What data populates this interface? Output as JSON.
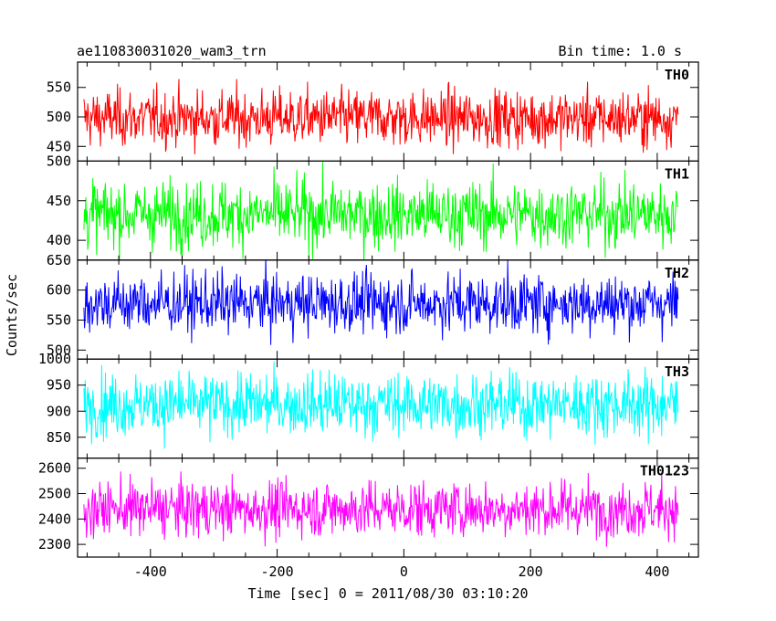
{
  "chart_data": {
    "type": "line",
    "title": "ae110830031020_wam3_trn",
    "subtitle": "Bin time: 1.0 s",
    "xlabel": "Time [sec] 0 = 2011/08/30 03:10:20",
    "ylabel": "Counts/sec",
    "xlim": [
      -515,
      465
    ],
    "x_ticks": [
      -400,
      -200,
      0,
      200,
      400
    ],
    "grid": false,
    "series_x": {
      "start": -505,
      "end": 433,
      "step": 1
    },
    "series": [
      {
        "name": "TH0",
        "color": "#ff0000",
        "mean": 498,
        "spread": 24,
        "ylim": [
          425,
          593
        ],
        "yticks": [
          450,
          500,
          550
        ]
      },
      {
        "name": "TH1",
        "color": "#00ff00",
        "mean": 433,
        "spread": 21,
        "ylim": [
          375,
          500
        ],
        "yticks": [
          400,
          450,
          500
        ]
      },
      {
        "name": "TH2",
        "color": "#0000ff",
        "mean": 578,
        "spread": 25,
        "ylim": [
          485,
          650
        ],
        "yticks": [
          500,
          550,
          600,
          650
        ]
      },
      {
        "name": "TH3",
        "color": "#00ffff",
        "mean": 913,
        "spread": 30,
        "ylim": [
          810,
          1000
        ],
        "yticks": [
          850,
          900,
          950,
          1000
        ]
      },
      {
        "name": "TH0123",
        "color": "#ff00ff",
        "mean": 2440,
        "spread": 55,
        "ylim": [
          2250,
          2640
        ],
        "yticks": [
          2300,
          2400,
          2500,
          2600
        ]
      }
    ]
  }
}
